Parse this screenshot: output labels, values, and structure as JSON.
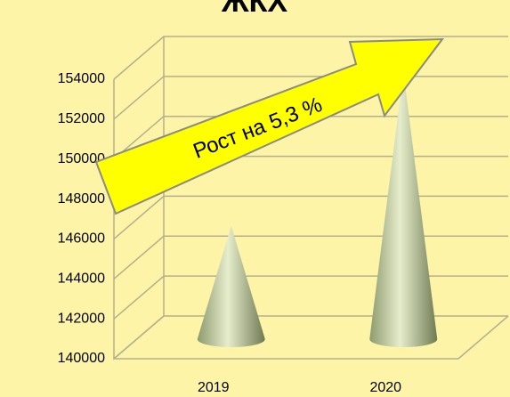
{
  "chart_data": {
    "type": "cone",
    "title": "ЖКХ",
    "categories": [
      "2019",
      "2020"
    ],
    "values": [
      146300,
      154000
    ],
    "ylim": [
      140000,
      154000
    ],
    "yticks": [
      140000,
      142000,
      144000,
      146000,
      148000,
      150000,
      152000,
      154000
    ],
    "grid": true,
    "annotation": "Рост на 5,3 %"
  }
}
